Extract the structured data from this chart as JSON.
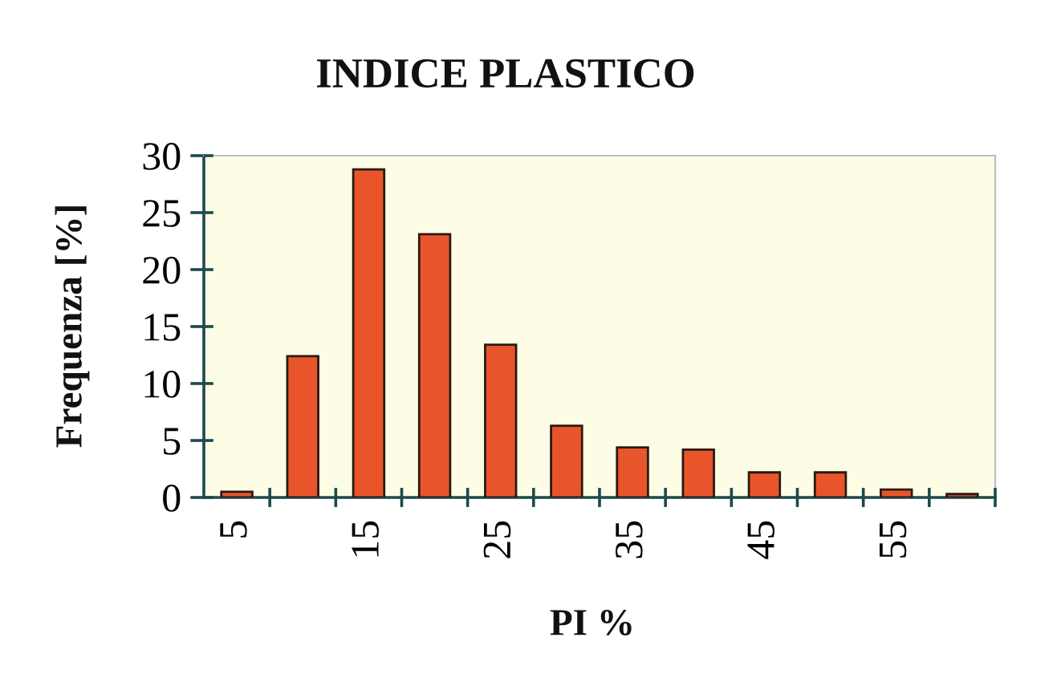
{
  "chart_data": {
    "type": "bar",
    "title": "INDICE PLASTICO",
    "xlabel": "PI %",
    "ylabel": "Frequenza [%]",
    "categories": [
      "5",
      null,
      "15",
      null,
      "25",
      null,
      "35",
      null,
      "45",
      null,
      "55",
      null
    ],
    "values": [
      0.5,
      12.4,
      28.8,
      23.1,
      13.4,
      6.3,
      4.4,
      4.2,
      2.2,
      2.2,
      0.7,
      0.3
    ],
    "color": "#e8552b",
    "ylim": [
      0,
      30
    ],
    "yticks": [
      0,
      5,
      10,
      15,
      20,
      25,
      30
    ]
  }
}
